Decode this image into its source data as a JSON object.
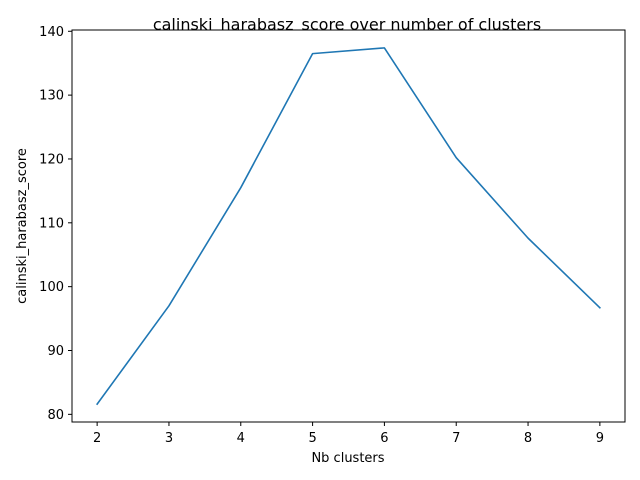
{
  "chart_data": {
    "type": "line",
    "title": "calinski_harabasz_score over number of clusters",
    "xlabel": "Nb clusters",
    "ylabel": "calinski_harabasz_score",
    "x": [
      2,
      3,
      4,
      5,
      6,
      7,
      8,
      9
    ],
    "series": [
      {
        "values": [
          81.6,
          97.0,
          115.5,
          136.5,
          137.4,
          120.2,
          107.6,
          96.7
        ],
        "color": "#1f77b4"
      }
    ],
    "xlim": [
      1.65,
      9.35
    ],
    "ylim": [
      78.8,
      140.2
    ],
    "xticks": [
      2,
      3,
      4,
      5,
      6,
      7,
      8,
      9
    ],
    "yticks": [
      80,
      90,
      100,
      110,
      120,
      130,
      140
    ],
    "grid": false,
    "legend": "none"
  }
}
